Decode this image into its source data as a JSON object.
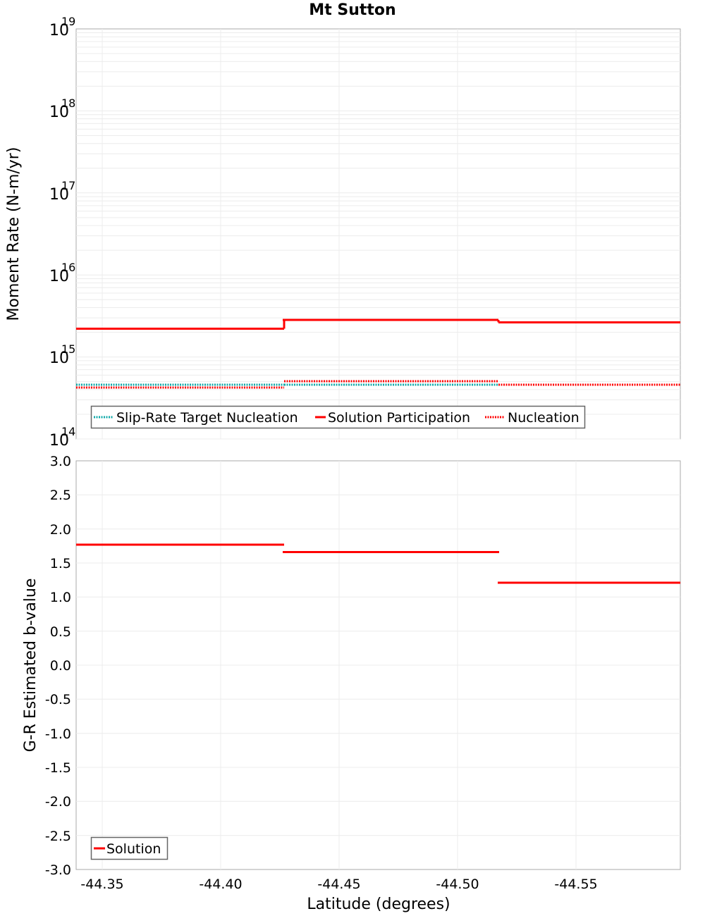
{
  "title": "Mt Sutton",
  "chart_data": [
    {
      "type": "line",
      "subtype": "step",
      "title": "Mt Sutton",
      "xlabel": "Latitude (degrees)",
      "ylabel": "Moment Rate (N-m/yr)",
      "yscale": "log",
      "ylim": [
        100000000000000.0,
        1e+19
      ],
      "xlim": [
        -44.339,
        -44.594
      ],
      "x_reversed": true,
      "grid": true,
      "y_ticks": [
        "10^14",
        "10^15",
        "10^16",
        "10^17",
        "10^18",
        "10^19"
      ],
      "legend_position": "lower-left",
      "segments_x": [
        [
          -44.339,
          -44.426
        ],
        [
          -44.426,
          -44.517
        ],
        [
          -44.517,
          -44.594
        ]
      ],
      "series": [
        {
          "name": "Slip-Rate Target Nucleation",
          "color": "#00aaaa",
          "style": "dotted",
          "values": [
            460000000000000.0,
            460000000000000.0,
            460000000000000.0
          ]
        },
        {
          "name": "Solution Participation",
          "color": "#ff0000",
          "style": "solid",
          "values": [
            2200000000000000.0,
            2800000000000000.0,
            2700000000000000.0
          ]
        },
        {
          "name": "Nucleation",
          "color": "#ff0000",
          "style": "dotted",
          "values": [
            420000000000000.0,
            510000000000000.0,
            460000000000000.0
          ]
        }
      ]
    },
    {
      "type": "line",
      "subtype": "step",
      "title": "",
      "xlabel": "Latitude (degrees)",
      "ylabel": "G-R Estimated b-value",
      "ylim": [
        -3.0,
        3.0
      ],
      "xlim": [
        -44.339,
        -44.594
      ],
      "x_reversed": true,
      "grid": true,
      "y_ticks": [
        "-3.0",
        "-2.5",
        "-2.0",
        "-1.5",
        "-1.0",
        "-0.5",
        "0.0",
        "0.5",
        "1.0",
        "1.5",
        "2.0",
        "2.5",
        "3.0"
      ],
      "x_ticks": [
        "-44.35",
        "-44.40",
        "-44.45",
        "-44.50",
        "-44.55"
      ],
      "legend_position": "lower-left",
      "segments_x": [
        [
          -44.339,
          -44.426
        ],
        [
          -44.426,
          -44.517
        ],
        [
          -44.517,
          -44.594
        ]
      ],
      "series": [
        {
          "name": "Solution",
          "color": "#ff0000",
          "style": "solid",
          "values": [
            1.77,
            1.67,
            1.21
          ]
        }
      ]
    }
  ],
  "top": {
    "ylabel": "Moment Rate (N-m/yr)",
    "yticks": [
      {
        "base": "10",
        "exp": "19"
      },
      {
        "base": "10",
        "exp": "18"
      },
      {
        "base": "10",
        "exp": "17"
      },
      {
        "base": "10",
        "exp": "16"
      },
      {
        "base": "10",
        "exp": "15"
      },
      {
        "base": "10",
        "exp": "14"
      }
    ],
    "legend": [
      "Slip-Rate Target Nucleation",
      "Solution Participation",
      "Nucleation"
    ]
  },
  "bottom": {
    "ylabel": "G-R Estimated b-value",
    "yticks": [
      "3.0",
      "2.5",
      "2.0",
      "1.5",
      "1.0",
      "0.5",
      "0.0",
      "-0.5",
      "-1.0",
      "-1.5",
      "-2.0",
      "-2.5",
      "-3.0"
    ],
    "xticks": [
      "-44.35",
      "-44.40",
      "-44.45",
      "-44.50",
      "-44.55"
    ],
    "xlabel": "Latitude (degrees)",
    "legend": [
      "Solution"
    ]
  }
}
